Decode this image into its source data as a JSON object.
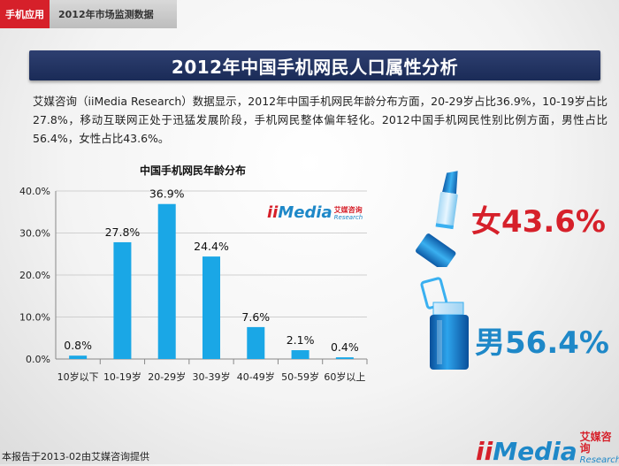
{
  "header": {
    "tag": "手机应用",
    "subtitle": "2012年市场监测数据"
  },
  "title": "2012年中国手机网民人口属性分析",
  "description": "艾媒咨询（iiMedia Research）数据显示，2012年中国手机网民年龄分布方面，20-29岁占比36.9%，10-19岁占比27.8%，移动互联网正处于迅猛发展阶段，手机网民整体偏年轻化。2012中国手机网民性别比例方面，男性占比56.4%，女性占比43.6%。",
  "chart_data": {
    "type": "bar",
    "title": "中国手机网民年龄分布",
    "categories": [
      "10岁以下",
      "10-19岁",
      "20-29岁",
      "30-39岁",
      "40-49岁",
      "50-59岁",
      "60岁以上"
    ],
    "values": [
      0.8,
      27.8,
      36.9,
      24.4,
      7.6,
      2.1,
      0.4
    ],
    "value_labels": [
      "0.8%",
      "27.8%",
      "36.9%",
      "24.4%",
      "7.6%",
      "2.1%",
      "0.4%"
    ],
    "y_ticks": [
      "0.0%",
      "10.0%",
      "20.0%",
      "30.0%",
      "40.0%"
    ],
    "ylim": [
      0,
      40
    ],
    "xlabel": "",
    "ylabel": "",
    "grid": true,
    "bar_color": "#1aa7e6"
  },
  "gender": {
    "female_label": "女43.6%",
    "male_label": "男56.4%",
    "female_color": "#d6202a",
    "male_color": "#1e88c8",
    "female_icon": "lipstick-icon",
    "male_icon": "lighter-icon"
  },
  "logo": {
    "ii": "ii",
    "media": "Media",
    "cn": "艾媒咨询",
    "en": "Research"
  },
  "footer": {
    "note": "本报告于2013-02由艾媒咨询提供"
  }
}
